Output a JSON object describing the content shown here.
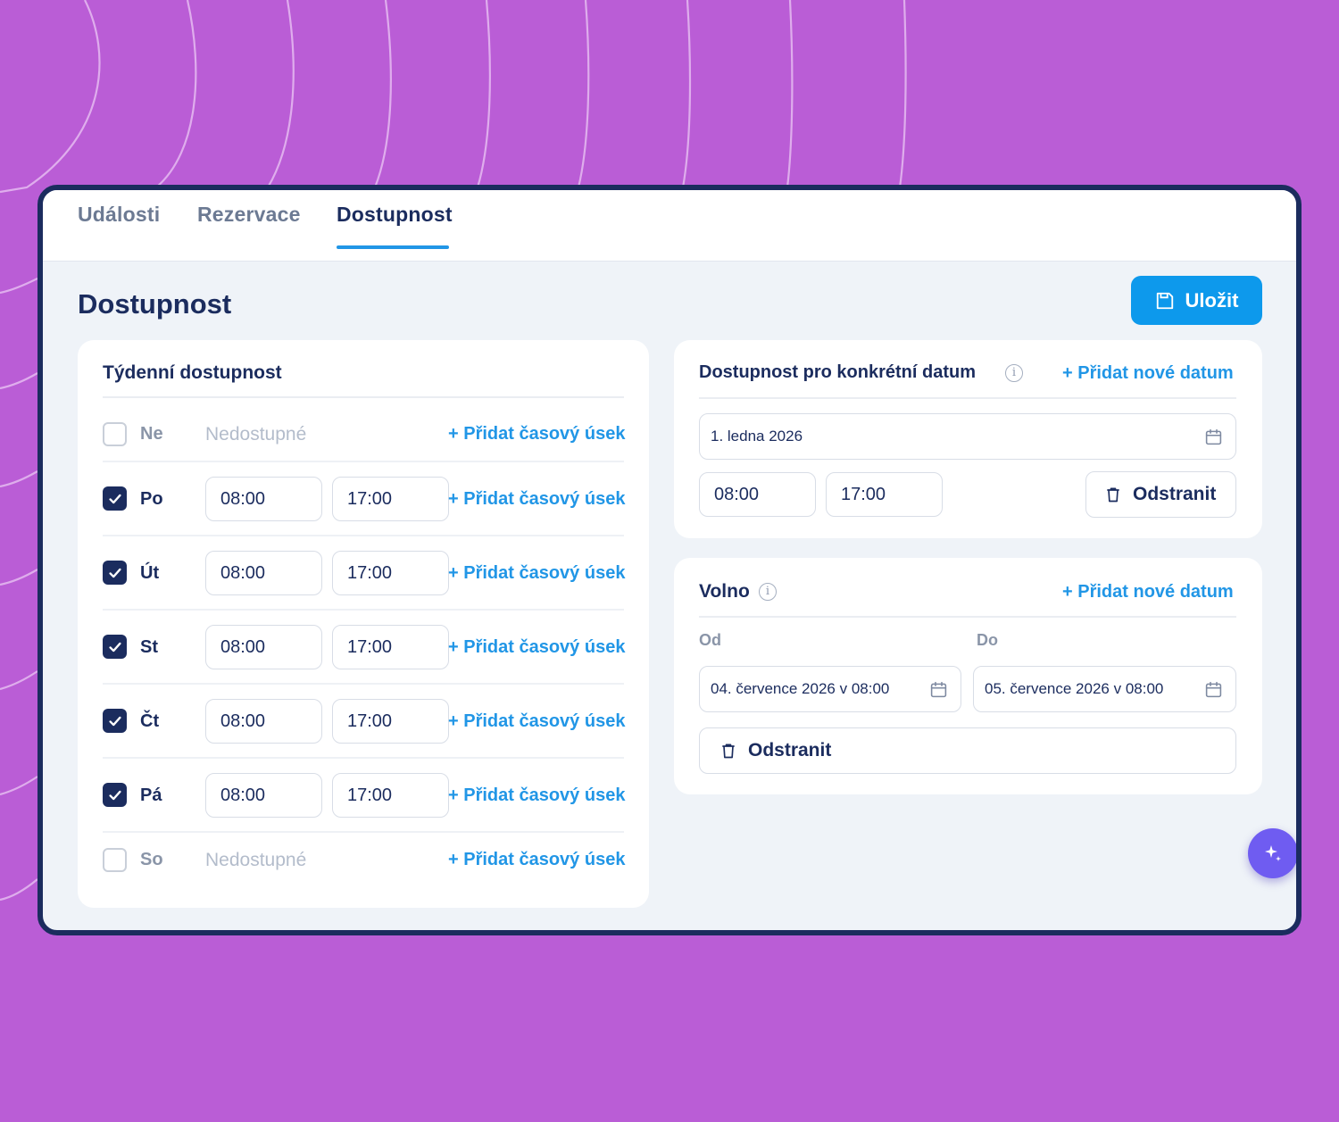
{
  "tabs": [
    {
      "label": "Události"
    },
    {
      "label": "Rezervace"
    },
    {
      "label": "Dostupnost",
      "active": true
    }
  ],
  "page": {
    "title": "Dostupnost",
    "save_label": "Uložit"
  },
  "weekly": {
    "title": "Týdenní dostupnost",
    "add_slot_label": "+ Přidat časový úsek",
    "unavailable_label": "Nedostupné",
    "days": [
      {
        "name": "Ne",
        "enabled": false
      },
      {
        "name": "Po",
        "enabled": true,
        "from": "08:00",
        "to": "17:00"
      },
      {
        "name": "Út",
        "enabled": true,
        "from": "08:00",
        "to": "17:00"
      },
      {
        "name": "St",
        "enabled": true,
        "from": "08:00",
        "to": "17:00"
      },
      {
        "name": "Čt",
        "enabled": true,
        "from": "08:00",
        "to": "17:00"
      },
      {
        "name": "Pá",
        "enabled": true,
        "from": "08:00",
        "to": "17:00"
      },
      {
        "name": "So",
        "enabled": false
      }
    ]
  },
  "specific": {
    "title": "Dostupnost pro konkrétní datum",
    "info_glyph": "i",
    "add_label": "+ Přidat nové datum",
    "date": "1. ledna 2026",
    "from": "08:00",
    "to": "17:00",
    "remove_label": "Odstranit"
  },
  "timeoff": {
    "title": "Volno",
    "info_glyph": "i",
    "add_label": "+ Přidat nové datum",
    "from_label": "Od",
    "to_label": "Do",
    "from_value": "04. července 2026 v 08:00",
    "to_value": "05. července 2026 v 08:00",
    "remove_label": "Odstranit"
  },
  "icons": {
    "save": "floppy-disk-icon",
    "calendar": "calendar-icon",
    "trash": "trash-icon",
    "check": "checkmark-icon",
    "fab": "sparkle-icon",
    "info": "info-icon"
  },
  "colors": {
    "background": "#ba5dd6",
    "navy": "#1b2c5e",
    "accent": "#0d99ec",
    "link": "#2196e6",
    "fab": "#6f5cf1"
  }
}
